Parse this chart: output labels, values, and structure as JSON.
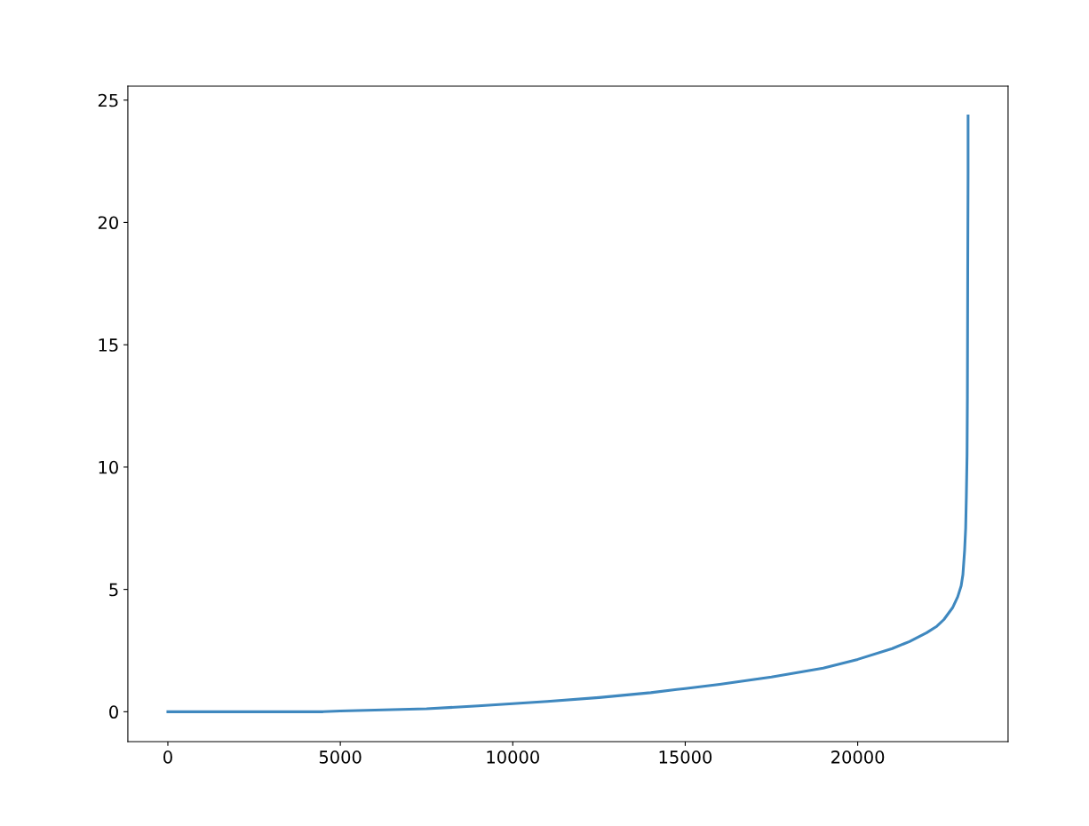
{
  "chart_data": {
    "type": "line",
    "x": [
      0,
      2000,
      4500,
      5000,
      6000,
      7500,
      9000,
      10000,
      11000,
      12500,
      14000,
      15000,
      16000,
      17500,
      19000,
      20000,
      21000,
      21500,
      22000,
      22300,
      22500,
      22750,
      22900,
      23000,
      23050,
      23100,
      23130,
      23150,
      23170,
      23180,
      23190,
      23200,
      23200
    ],
    "series": [
      {
        "color": "#3f88bf",
        "values": [
          0,
          0,
          0,
          0.03,
          0.07,
          0.12,
          0.24,
          0.33,
          0.42,
          0.58,
          0.78,
          0.95,
          1.12,
          1.42,
          1.78,
          2.14,
          2.58,
          2.87,
          3.23,
          3.5,
          3.77,
          4.25,
          4.7,
          5.15,
          5.6,
          6.6,
          7.5,
          8.8,
          10.5,
          12.8,
          18,
          22,
          24.35
        ]
      }
    ],
    "xlim": [
      -1160,
      24360
    ],
    "ylim": [
      -1.22,
      25.57
    ],
    "xticks": [
      0,
      5000,
      10000,
      15000,
      20000
    ],
    "yticks": [
      0,
      5,
      10,
      15,
      20,
      25
    ],
    "grid": false,
    "legend": false,
    "marker": "none",
    "line_style": "solid"
  }
}
